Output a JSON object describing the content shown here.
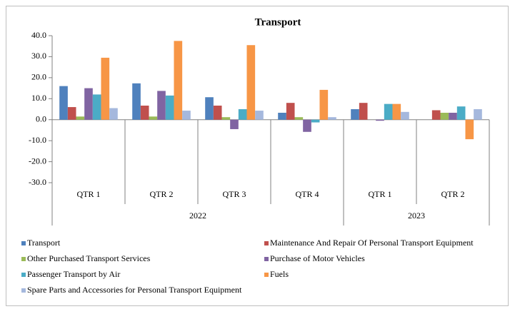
{
  "chart_data": {
    "type": "bar",
    "title": "Transport",
    "categories": [
      "QTR 1",
      "QTR 2",
      "QTR 3",
      "QTR 4",
      "QTR 1",
      "QTR 2"
    ],
    "groups": [
      {
        "label": "2022",
        "span": 4
      },
      {
        "label": "2023",
        "span": 2
      }
    ],
    "series": [
      {
        "name": "Transport",
        "color": "#4f81bd",
        "values": [
          16,
          17.3,
          10.7,
          3.3,
          5,
          0
        ]
      },
      {
        "name": "Maintenance And Repair Of Personal Transport Equipment",
        "color": "#c0504d",
        "values": [
          6,
          6.7,
          6.7,
          8,
          8,
          4.5
        ]
      },
      {
        "name": "Other Purchased Transport Services",
        "color": "#9bbb59",
        "values": [
          1.5,
          1.5,
          1.2,
          1.2,
          0,
          3.3
        ]
      },
      {
        "name": "Purchase of Motor Vehicles",
        "color": "#8064a2",
        "values": [
          15,
          13.7,
          -4.5,
          -5.8,
          -0.5,
          3.3
        ]
      },
      {
        "name": "Passenger Transport by Air",
        "color": "#4bacc6",
        "values": [
          12,
          11.5,
          5,
          -1.3,
          7.5,
          6.3
        ]
      },
      {
        "name": "Fuels",
        "color": "#f79646",
        "values": [
          29.5,
          37.5,
          35.5,
          14.2,
          7.5,
          -9.3
        ]
      },
      {
        "name": "Spare Parts and Accessories for Personal Transport Equipment",
        "color": "#a5b8dd",
        "values": [
          5.5,
          4.3,
          4.3,
          1.2,
          3.7,
          5
        ]
      }
    ],
    "ylim": [
      -30,
      40
    ],
    "yticks": [
      {
        "value": -30,
        "label": "-30.0"
      },
      {
        "value": -20,
        "label": "-20.0"
      },
      {
        "value": -10,
        "label": "-10.0"
      },
      {
        "value": 0,
        "label": "0.0"
      },
      {
        "value": 10,
        "label": "10.0"
      },
      {
        "value": 20,
        "label": "20.0"
      },
      {
        "value": 30,
        "label": "30.0"
      },
      {
        "value": 40,
        "label": "40.0"
      }
    ],
    "grid": false,
    "legend": "bottom"
  }
}
